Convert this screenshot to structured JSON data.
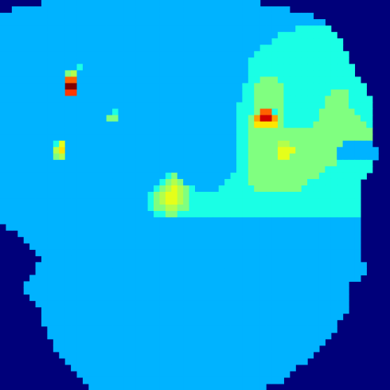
{
  "chart_data": {
    "type": "heatmap",
    "title": "",
    "xlabel": "",
    "ylabel": "",
    "colormap": "jet",
    "value_range": [
      0,
      1
    ],
    "grid": false,
    "legend": "none",
    "masked_color": "#00007a",
    "rows": [
      "mmmmmmmaaaaaaaaaaaaaaaaaaaaaaaaaaaaaaaaaaaaammmmmmmmmmmmmmmmmmm",
      "mmaaaaaaaaaaaaaaaaaaaaaaaaaaaaaaaaaaaaaaaaaaaaaaammmmmmmmmmmmmmm",
      "aaaaaaaaaaaaaaaaaaaaaaaaaaaaaaaaaaaaaaaaaaaaaaaaaaaaammmmmmmmmmm",
      "aaaaaaaaaaaaaaaaaaaaaaaaaaaaaaaaaaaaaaaaaaaaaaaaaaaaaaammmmmmmmm",
      "aaaaaaaaaaaaaaaaaaaaaaaaaaaaaaaaaaaaaaaaaaaaaaaaaabbbbbbmmmmmmmm",
      "aaaaaaaaaaaaaaaaaaaaaaaaaaaaaaaaaaaaaaaaaaaaaaabbbbbbbbbbmmmmmmm",
      "aaaaaaaaaaaaaaaaaaaaaaaaaaaaaaaaaaaaaaaaaaaaaabbbbbbbbbbbbmmmmmm",
      "aaaaaaaaaaaaaaaaaaaaaaaaaaaaaaaaaaaaaaaaaaaabbbbbbbbbbbbbbmmmmm",
      "aaaaaaaaaaaaaaaaaaaaaaaaaaaaaaaaaaaaaaaaaaabbbbbbbbbbbbbbbbmmmm",
      "aaaaaaaaaaaaaaaaaaaaaaaaaaaaaaaaaaaaaaaaaabbbbbbbbbbbbbbbbbmmmm",
      "aaaaaaaaaaaaabaaaaaaaaaaaaaaaaaaaaaaaaaaaabbbbbbbbbbbbbbbbbbmmmm",
      "aaaaaaaaaaacdaaaaaaaaaaaaaaaaaaaaaaaaaaaaabbbbbbbbbbbbbbbbbbmmmm",
      "aaaaaaaaaaahhaaaaaaaaaaaaaaaaaaaaaaaaaaaaabbcccbbbbbbbbbbbbbbmmm",
      "aaaaaaaaaaaqqaaaaaaaaaaaaaaaaaaaaaaaaaaaabbcccccbbbbbbbbbbbbbbmmm",
      "aaaaaaaaaaajjaaaaaaaaaaaaaaaaaaaaaaaaaaaabbcccccbbbbbbbbcccbbbmmm",
      "aaaaaaaaaaaaaaaaaaaaaaaaaaaaaaaaaaaaaaaaabbcccccbbbbbbbccccbbbbmm",
      "aaaaaaaaaaaaaaaaaaaaaaaaaaaaaaaaaaaaaaaabbbcccccbbbbbbbccccbbbbmm",
      "aaaaaaaaaaaaaaaaaaabaaaaaaaaaaaaaaaaaaaabbbchhbcbbbbbbccccccbbbmm",
      "aaaaaaaaaaaaaaaaaaccaaaaaaaaaaaaaaaaaaaabbcgrrgcbbbbbbcccccccbbmm",
      "aaaaaaaaaaaaaaaaaaaaaaaaaaaaaaaaaaaaaaaabbcffffcbbbbbcccccccccbmm",
      "aaaaaaaaaaaaaaaaaaaaaaaaaaaaaaaaaaaaaaaabbcccccccccccccccccccccmm",
      "aaaaaaaaaaaaaaaaaaaaaaaaaaaaaaaaaaaaaaaabbcccccccccccccccccccccmm",
      "aaaaaaaaabeaaaaaaaaaaaaaaaaaaaaaaaaaaaaabbcccccddcccccccccaaaaamm",
      "aaaaaaaaadfaaaaaaaaaaaaaaaaaaaaaaaaaaaaabbccccceeecccccccaaaaaaamm",
      "aaaaaaaaacdaaaaaaaaaaaaaaaaaaaaaaaaaaaaabbccccceeccccccccaaaaaaamm",
      "aaaaaaaaaaaaaaaaaaaaaaaaaaaaaaaaaaaaaaaabbcccccccccccccccbbbbbbmm",
      "aaaaaaaaaaaaaaaaaaaaaaaaaaaaaaaaaaaaaaaabbcccccccccccccbbbbbbbbmm",
      "aaaaaaaaaaaaaaaaaaaaaaaaaaaabcaaaaaaaaabbbccccccccccccbbbbbbbbmm",
      "aaaaaaaaaaaaaaaaaaaaaaaaaaabcdcaaaaaaabbbbccccccccccbbbbbbbbbmm",
      "aaaaaaaaaaaaaaaaaaaaaaaaaabcdedcbaaaabbbbbbccccccccbbbbbbbbbbmm",
      "aaaaaaaaaaaaaaaaaaaaaaaaabcdeedcbbbbbbbbbbbbbbbbbbbbbbbbbbbbbmm",
      "aaaaaaaaaaaaaaaaaaaaaaaaabcdeedcbbbbbbbbbbbbbbbbbbbbbbbbbbbbbmm",
      "aaaaaaaaaaaaaaaaaaaaaaaaabccddccbbbbbbbbbbbbbbbbbbbbbbbbbbbbbmm",
      "aaaaaaaaaaaaaaaaaaaaaaaaaabbccbbbbbbbbbbbbbbbbbbbbbbbbbbbbbbbmm",
      "aaaaaaaaaaaaaaaaaaaaaaaaaaaaaaaaaaaaaaaaaaaaaaaaaaaaaaaaaaaaamm",
      "maaaaaaaaaaaaaaaaaaaaaaaaaaaaaaaaaaaaaaaaaaaaaaaaaaaaaaaaaaaamm",
      "mmmaaaaaaaaaaaaaaaaaaaaaaaaaaaaaaaaaaaaaaaaaaaaaaaaaaaaaaaaaamm",
      "mmmmaaaaaaaaaaaaaaaaaaaaaaaaaaaaaaaaaaaaaaaaaaaaaaaaaaaaaaaaammm",
      "mmmmmaaaaaaaaaaaaaaaaaaaaaaaaaaaaaaaaaaaaaaaaaaaaaaaaaaaaaaaammm",
      "mmmmmmaaaaaaaaaaaaaaaaaaaaaaaaaaaaaaaaaaaaaaaaaaaaaaaaaaaaaaammm",
      "mmmmmmmaaaaaaaaaaaaaaaaaaaaaaaaaaaaaaaaaaaaaaaaaaaaaaaaaaaaaammm",
      "mmmmmmaaaaaaaaaaaaaaaaaaaaaaaaaaaaaaaaaaaaaaaaaaaaaaaaaaaaaaaammm",
      "mmmmmmaaaaaaaaaaaaaaaaaaaaaaaaaaaaaaaaaaaaaaaaaaaaaaaaaaaaaaaammm",
      "mmmmmaaaaaaaaaaaaaaaaaaaaaaaaaaaaaaaaaaaaaaaaaaaaaaaaaaaaaaaammm",
      "mmmmaaaaaaaaaaaaaaaaaaaaaaaaaaaaaaaaaaaaaaaaaaaaaaaaaaaaaaammmm",
      "mmmmaaaaaaaaaaaaaaaaaaaaaaaaaaaaaaaaaaaaaaaaaaaaaaaaaaaaaaammmm",
      "mmmmmaaaaaaaaaaaaaaaaaaaaaaaaaaaaaaaaaaaaaaaaaaaaaaaaaaaaaammmm",
      "mmmmmmaaaaaaaaaaaaaaaaaaaaaaaaaaaaaaaaaaaaaaaaaaaaaaaaaaaaammmm",
      "mmmmmmmaaaaaaaaaaaaaaaaaaaaaaaaaaaaaaaaaaaaaaaaaaaaaaaaaaaammmm",
      "mmmmmmmaaaaaaaaaaaaaaaaaaaaaaaaaaaaaaaaaaaaaaaaaaaaaaaaaaammmmm",
      "mmmmmmmaaaaaaaaaaaaaaaaaaaaaaaaaaaaaaaaaaaaaaaaaaaaaaaaaammmmmm",
      "mmmmmmmmaaaaaaaaaaaaaaaaaaaaaaaaaaaaaaaaaaaaaaaaaaaaaaaaammmmmm",
      "mmmmmmmmaaaaaaaaaaaaaaaaaaaaaaaaaaaaaaaaaaaaaaaaaaaaaaaammmmmmm",
      "mmmmmmmmmaaaaaaaaaaaaaaaaaaaaaaaaaaaaaaaaaaaaaaaaaaaaaammmmmmmm",
      "mmmmmmmmmaaaaaaaaaaaaaaaaaaaaaaaaaaaaaaaaaaaaaaaaaaaaammmmmmmmm",
      "mmmmmmmmmmaaaaaaaaaaaaaaaaaaaaaaaaaaaaaaaaaaaaaaaaaaammmmmmmmmm",
      "mmmmmmmmmmmaaaaaaaaaaaaaaaaaaaaaaaaaaaaaaaaaaaaaaaaammmmmmmmmmm",
      "mmmmmmmmmmmmaaaaaaaaaaaaaaaaaaaaaaaaaaaaaaaaaaaaaammmmmmmmmmmmm",
      "mmmmmmmmmmmmmaaaaaaaaaaaaaaaaaaaaaaaaaaaaaaaaaaaammmmmmmmmmmmmm",
      "mmmmmmmmmmmmmmaaaaaaaaaaaaaaaaaaaaaaaaaaaaaaaaaammmmmmmmmmmmmmm",
      "mmmmmmmmmmmmmmmaaaaaaaaaaaaaaaaaaaaaaaaaaaaaammmmmmmmmmmmmmmmmm"
    ],
    "levels": {
      "m": null,
      "a": 0.3,
      "b": 0.4,
      "c": 0.5,
      "d": 0.55,
      "e": 0.6,
      "f": 0.65,
      "g": 0.72,
      "h": 0.78,
      "j": 0.82,
      "q": 1.0,
      "r": 0.92
    }
  }
}
